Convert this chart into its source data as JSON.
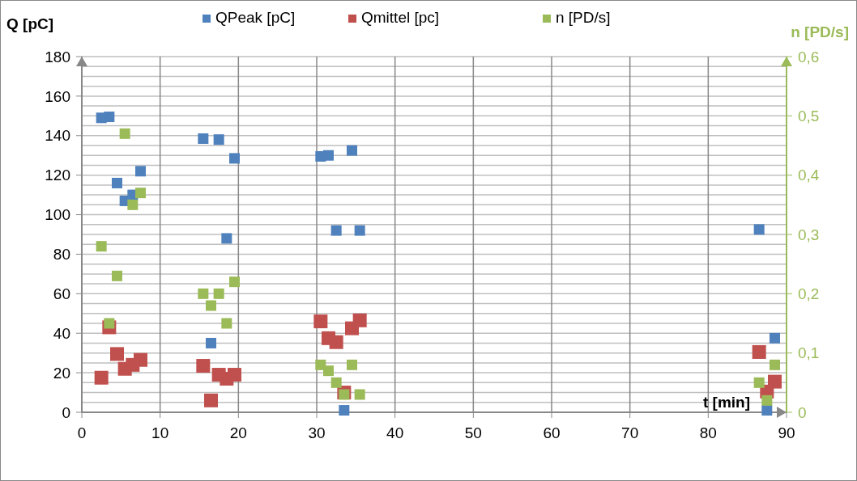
{
  "chart_data": {
    "type": "scatter",
    "ylabel": "Q [pC]",
    "y2label": "n [PD/s]",
    "xlabel": "t [min]",
    "legend": "top",
    "grid": true,
    "marker": "square",
    "xlim": [
      0,
      90
    ],
    "xticks": [
      0,
      10,
      20,
      30,
      40,
      50,
      60,
      70,
      80,
      90
    ],
    "ylim": [
      0,
      180
    ],
    "yticks": [
      0,
      {
        "value": 5,
        "label": null
      },
      {
        "value": 10,
        "label": null
      },
      {
        "value": 15,
        "label": null
      },
      20,
      {
        "value": 25,
        "label": null
      },
      {
        "value": 30,
        "label": null
      },
      {
        "value": 35,
        "label": null
      },
      40,
      {
        "value": 45,
        "label": null
      },
      {
        "value": 50,
        "label": null
      },
      {
        "value": 55,
        "label": null
      },
      60,
      {
        "value": 65,
        "label": null
      },
      {
        "value": 70,
        "label": null
      },
      {
        "value": 75,
        "label": null
      },
      80,
      {
        "value": 85,
        "label": null
      },
      {
        "value": 90,
        "label": null
      },
      {
        "value": 95,
        "label": null
      },
      100,
      {
        "value": 105,
        "label": null
      },
      {
        "value": 110,
        "label": null
      },
      {
        "value": 115,
        "label": null
      },
      120,
      {
        "value": 125,
        "label": null
      },
      {
        "value": 130,
        "label": null
      },
      {
        "value": 135,
        "label": null
      },
      140,
      {
        "value": 145,
        "label": null
      },
      {
        "value": 150,
        "label": null
      },
      {
        "value": 155,
        "label": null
      },
      160,
      {
        "value": 165,
        "label": null
      },
      {
        "value": 170,
        "label": null
      },
      {
        "value": 175,
        "label": null
      },
      180
    ],
    "y2lim": [
      0,
      0.6
    ],
    "y2ticks": [
      {
        "value": 0,
        "label": "0"
      },
      {
        "value": 0.1,
        "label": "0,1"
      },
      {
        "value": 0.2,
        "label": "0,2"
      },
      {
        "value": 0.3,
        "label": "0,3"
      },
      {
        "value": 0.4,
        "label": "0,4"
      },
      {
        "value": 0.5,
        "label": "0,5"
      },
      {
        "value": 0.6,
        "label": "0,6"
      }
    ],
    "x": [
      2.5,
      3.5,
      4.5,
      5.5,
      6.5,
      7.5,
      15.5,
      16.5,
      17.5,
      18.5,
      19.5,
      30.5,
      31.5,
      32.5,
      33.5,
      34.5,
      35.5,
      86.5,
      87.5,
      88.5
    ],
    "series": [
      {
        "name": "QPeak [pC]",
        "color": "#4f81bd",
        "values": [
          149,
          149.5,
          116,
          107,
          110,
          122,
          138.5,
          35,
          138,
          88,
          128.5,
          129.5,
          130,
          92,
          1,
          132.5,
          92,
          92.5,
          1,
          37.5
        ]
      },
      {
        "name": "Qmittel [pc]",
        "color": "#c0504d",
        "values": [
          17.5,
          43,
          29.5,
          22,
          24,
          26.5,
          23.5,
          6,
          19,
          17,
          19,
          46,
          37.5,
          35.5,
          10,
          42.5,
          46.5,
          30.5,
          10.5,
          15.5
        ]
      },
      {
        "name": "n [PD/s]",
        "color": "#9bbb59",
        "axis": "y2",
        "values": [
          0.28,
          0.15,
          0.23,
          0.47,
          0.35,
          0.37,
          0.2,
          0.18,
          0.2,
          0.15,
          0.22,
          0.08,
          0.07,
          0.05,
          0.03,
          0.08,
          0.03,
          0.05,
          0.02,
          0.08
        ]
      }
    ]
  }
}
